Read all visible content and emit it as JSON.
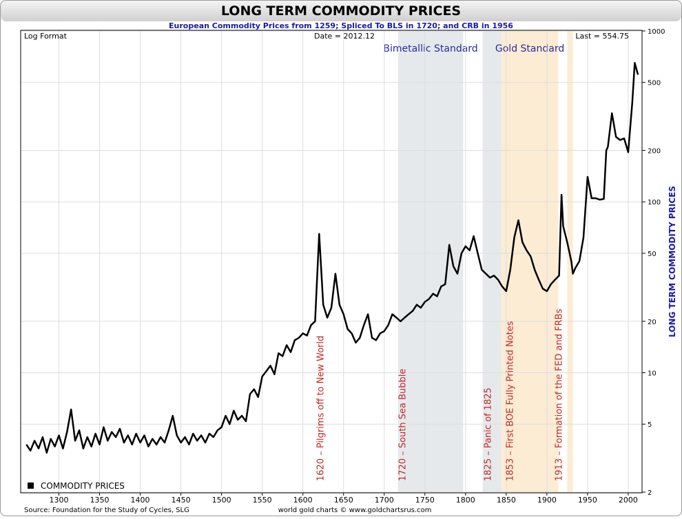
{
  "chart_data": {
    "type": "line",
    "title": "LONG TERM COMMODITY PRICES",
    "subtitle": "European Commodity Prices from 1259; Spliced To BLS in 1720; and CRB in 1956",
    "format_note": "Log Format",
    "date_note": "Date = 2012.12",
    "last_note": "Last = 554.75",
    "ylabel": "LONG TERM COMMODITY PRICES",
    "source": "Source: Foundation for the Study of Cycles, SLG",
    "credit": "world gold charts © www.goldchartsrus.com",
    "log_scale": true,
    "grid": true,
    "legend": "lower left",
    "xlim": [
      1253,
      2017
    ],
    "xticks": [
      1300,
      1350,
      1400,
      1450,
      1500,
      1550,
      1600,
      1650,
      1700,
      1750,
      1800,
      1850,
      1900,
      1950,
      2000
    ],
    "ylim": [
      2,
      1000
    ],
    "yticks": [
      2,
      5,
      10,
      20,
      50,
      100,
      200,
      500,
      1000
    ],
    "regions": [
      {
        "name": "Bimetallic Standard",
        "xrange": [
          1717,
          1797
        ],
        "color": "#e6e9ec"
      },
      {
        "xrange": [
          1821,
          1844
        ],
        "color": "#e6e9ec"
      },
      {
        "name": "Gold Standard",
        "xrange": [
          1844,
          1914
        ],
        "color": "#fcecd4"
      },
      {
        "xrange": [
          1925,
          1932
        ],
        "color": "#fcecd4"
      }
    ],
    "annotations": [
      {
        "text": "1620 – Pilgrims off to New World",
        "x": 1621
      },
      {
        "text": "1720 – South Sea Bubble",
        "x": 1722
      },
      {
        "text": "1825 – Panic of 1825",
        "x": 1827
      },
      {
        "text": "1853 – First BOE Fully Printed Notes",
        "x": 1854
      },
      {
        "text": "1913 – Formation of the FED and FRBs",
        "x": 1914
      }
    ],
    "series": [
      {
        "name": "COMMODITY PRICES",
        "color": "#000000",
        "x": [
          1260,
          1265,
          1270,
          1275,
          1280,
          1285,
          1290,
          1295,
          1300,
          1305,
          1310,
          1315,
          1320,
          1325,
          1330,
          1335,
          1340,
          1345,
          1350,
          1355,
          1360,
          1365,
          1370,
          1375,
          1380,
          1385,
          1390,
          1395,
          1400,
          1405,
          1410,
          1415,
          1420,
          1425,
          1430,
          1435,
          1440,
          1445,
          1450,
          1455,
          1460,
          1465,
          1470,
          1475,
          1480,
          1485,
          1490,
          1495,
          1500,
          1505,
          1510,
          1515,
          1520,
          1525,
          1530,
          1535,
          1540,
          1545,
          1550,
          1555,
          1560,
          1565,
          1570,
          1575,
          1580,
          1585,
          1590,
          1595,
          1600,
          1605,
          1610,
          1615,
          1620,
          1625,
          1630,
          1635,
          1640,
          1645,
          1650,
          1655,
          1660,
          1665,
          1670,
          1675,
          1680,
          1685,
          1690,
          1695,
          1700,
          1705,
          1710,
          1715,
          1720,
          1725,
          1730,
          1735,
          1740,
          1745,
          1750,
          1755,
          1760,
          1765,
          1770,
          1775,
          1780,
          1785,
          1790,
          1795,
          1800,
          1805,
          1810,
          1815,
          1820,
          1825,
          1830,
          1835,
          1840,
          1845,
          1850,
          1855,
          1860,
          1865,
          1870,
          1875,
          1880,
          1885,
          1890,
          1895,
          1900,
          1905,
          1910,
          1915,
          1918,
          1920,
          1925,
          1930,
          1932,
          1935,
          1940,
          1945,
          1950,
          1955,
          1960,
          1965,
          1970,
          1973,
          1975,
          1980,
          1985,
          1990,
          1995,
          2000,
          2005,
          2008,
          2012
        ],
        "values": [
          3.8,
          3.5,
          4.0,
          3.6,
          4.2,
          3.4,
          4.1,
          3.7,
          4.3,
          3.6,
          4.5,
          6.1,
          4.0,
          4.6,
          3.6,
          4.2,
          3.7,
          4.4,
          3.8,
          4.8,
          4.0,
          4.5,
          4.2,
          4.7,
          3.9,
          4.3,
          3.8,
          4.4,
          3.9,
          4.3,
          3.7,
          4.1,
          3.8,
          4.2,
          3.9,
          4.6,
          5.6,
          4.3,
          3.9,
          4.2,
          3.8,
          4.4,
          4.0,
          4.3,
          3.9,
          4.4,
          4.2,
          4.6,
          4.8,
          5.6,
          5.0,
          6.0,
          5.3,
          5.6,
          5.2,
          7.5,
          8.0,
          7.2,
          9.5,
          10.2,
          11.0,
          9.8,
          13.0,
          12.5,
          14.5,
          13.2,
          15.5,
          16.0,
          17.0,
          16.5,
          19.0,
          20.0,
          65,
          25,
          21,
          24,
          38,
          25,
          22,
          18,
          17,
          15,
          16,
          19,
          22,
          16,
          15.5,
          17,
          17.5,
          19,
          22,
          21,
          20,
          21,
          22,
          23,
          25,
          24,
          26,
          27,
          29,
          28,
          32,
          33,
          56,
          42,
          38,
          50,
          55,
          52,
          63,
          50,
          40,
          38,
          36,
          37,
          35,
          32,
          30,
          40,
          62,
          78,
          58,
          52,
          48,
          40,
          35,
          31,
          30,
          33,
          35,
          37,
          110,
          72,
          58,
          45,
          38,
          41,
          45,
          62,
          140,
          105,
          105,
          103,
          104,
          200,
          210,
          330,
          240,
          230,
          235,
          195,
          380,
          650,
          554.75
        ]
      }
    ]
  }
}
